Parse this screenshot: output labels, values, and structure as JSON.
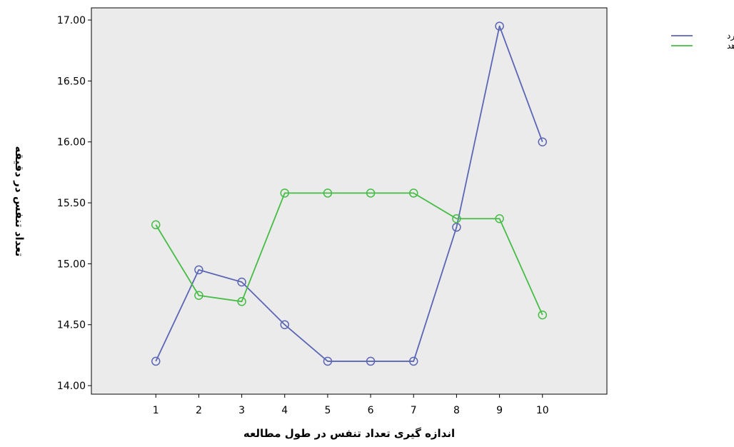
{
  "chart_data": {
    "type": "line",
    "title": "",
    "xlabel": "اندازه گیری تعداد تنفس در طول مطالعه",
    "ylabel": "تعداد تنفس در دقیقه",
    "categories": [
      "1",
      "2",
      "3",
      "4",
      "5",
      "6",
      "7",
      "8",
      "9",
      "10"
    ],
    "x": [
      1,
      2,
      3,
      4,
      5,
      6,
      7,
      8,
      9,
      10
    ],
    "xlim": [
      -0.5,
      11.5
    ],
    "ylim": [
      13.93,
      17.1
    ],
    "yticks": [
      14.0,
      14.5,
      15.0,
      15.5,
      16.0,
      16.5,
      17.0
    ],
    "ytick_labels": [
      "14.00",
      "14.50",
      "15.00",
      "15.50",
      "16.00",
      "16.50",
      "17.00"
    ],
    "grid": false,
    "legend_position": "top-right",
    "series": [
      {
        "name": "مورد",
        "color": "#5b66b4",
        "marker": "circle",
        "values": [
          14.2,
          14.95,
          14.85,
          14.5,
          14.2,
          14.2,
          14.2,
          15.3,
          16.95,
          16.0
        ]
      },
      {
        "name": "شاهد",
        "color": "#45bd45",
        "marker": "circle",
        "values": [
          15.32,
          14.74,
          14.69,
          15.58,
          15.58,
          15.58,
          15.58,
          15.37,
          15.37,
          14.58
        ]
      }
    ],
    "colors": {
      "plot_background": "#ebebeb",
      "frame": "#000000"
    }
  }
}
